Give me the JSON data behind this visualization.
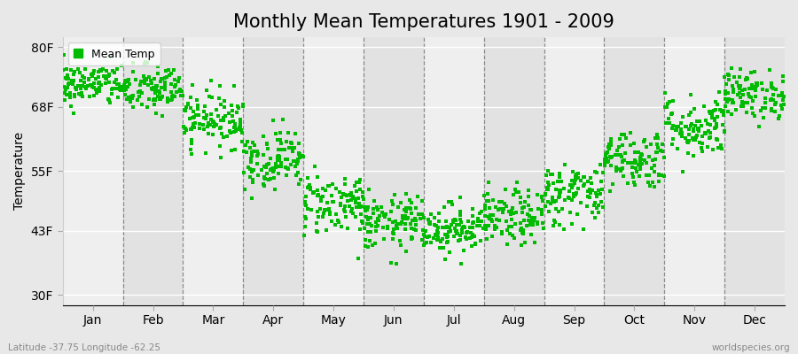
{
  "title": "Monthly Mean Temperatures 1901 - 2009",
  "ylabel": "Temperature",
  "ytick_labels": [
    "30F",
    "43F",
    "55F",
    "68F",
    "80F"
  ],
  "ytick_values": [
    30,
    43,
    55,
    68,
    80
  ],
  "ylim": [
    28,
    82
  ],
  "months": [
    "Jan",
    "Feb",
    "Mar",
    "Apr",
    "May",
    "Jun",
    "Jul",
    "Aug",
    "Sep",
    "Oct",
    "Nov",
    "Dec"
  ],
  "dot_color": "#00bb00",
  "bg_color": "#e8e8e8",
  "plot_bg_color_light": "#efefef",
  "plot_bg_color_dark": "#e2e2e2",
  "legend_label": "Mean Temp",
  "bottom_left": "Latitude -37.75 Longitude -62.25",
  "bottom_right": "worldspecies.org",
  "title_fontsize": 15,
  "label_fontsize": 10,
  "n_years": 109,
  "seed": 42,
  "monthly_means_F": [
    72.5,
    71.5,
    65.5,
    57.5,
    48.5,
    44.5,
    43.5,
    45.5,
    50.5,
    57.5,
    64.0,
    70.5
  ],
  "monthly_stds_F": [
    2.2,
    2.5,
    2.8,
    3.0,
    3.2,
    2.8,
    2.5,
    2.8,
    3.2,
    3.0,
    3.2,
    2.5
  ]
}
